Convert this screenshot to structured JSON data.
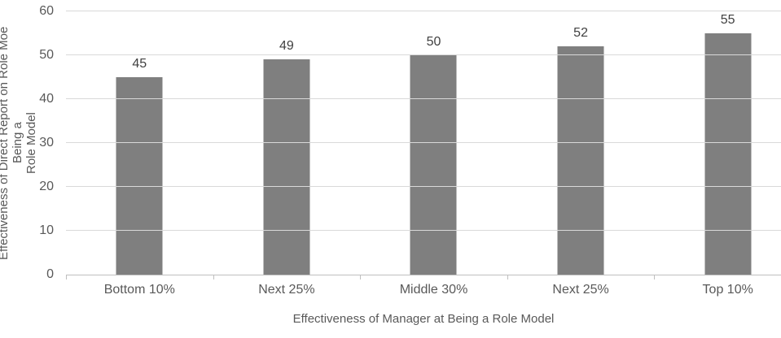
{
  "chart_data": {
    "type": "bar",
    "categories": [
      "Bottom 10%",
      "Next 25%",
      "Middle 30%",
      "Next 25%",
      "Top 10%"
    ],
    "values": [
      45,
      49,
      50,
      52,
      55
    ],
    "title": "",
    "xlabel": "Effectiveness of Manager at Being a Role Model",
    "ylabel": "Effectiveness of Direct Report on Role Moe Being a\nRole Model",
    "ylim": [
      0,
      60
    ],
    "yticks": [
      0,
      10,
      20,
      30,
      40,
      50,
      60
    ],
    "grid": true,
    "legend": false,
    "colors": {
      "bar": "#7f7f7f",
      "gridline": "#d9d9d9",
      "axis_line": "#bfbfbf",
      "axis_text": "#595959",
      "value_label_text": "#404040",
      "background": "#ffffff"
    }
  }
}
